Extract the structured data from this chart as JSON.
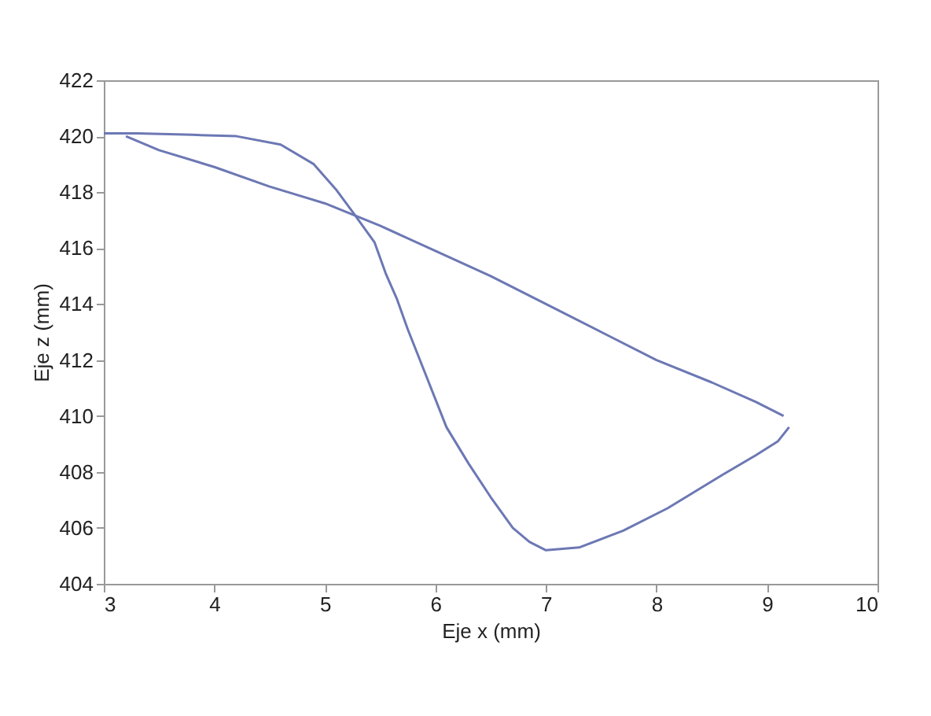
{
  "chart_data": {
    "type": "line",
    "xlabel": "Eje x (mm)",
    "ylabel": "Eje z (mm)",
    "series": [
      {
        "color": "#6c78b4",
        "x": [
          3,
          3.3,
          3.8,
          4.2,
          4.6,
          4.9,
          5.1,
          5.25,
          5.45,
          5.55,
          5.65,
          5.75,
          5.9,
          6.1,
          6.3,
          6.5,
          6.7,
          6.85,
          7,
          7.3,
          7.7,
          8.1,
          8.6,
          8.9,
          9.1,
          9.2
        ],
        "values": [
          420.1,
          420.1,
          420.05,
          420,
          419.7,
          419,
          418.1,
          417.3,
          416.2,
          415.1,
          414.2,
          413.1,
          411.6,
          409.6,
          408.3,
          407.1,
          406,
          405.5,
          405.2,
          405.3,
          405.9,
          406.7,
          407.9,
          408.6,
          409.1,
          409.6
        ]
      },
      {
        "color": "#6c78b4",
        "x": [
          3.2,
          3.5,
          4,
          4.5,
          5,
          5.5,
          6,
          6.5,
          7,
          7.5,
          8,
          8.5,
          8.9,
          9.15
        ],
        "values": [
          420,
          419.5,
          418.9,
          418.2,
          417.6,
          416.8,
          415.9,
          415,
          414,
          413,
          412,
          411.2,
          410.5,
          410
        ]
      }
    ],
    "xlim": [
      3,
      10
    ],
    "xticks": [
      3,
      4,
      5,
      6,
      7,
      8,
      9,
      10
    ],
    "ylim": [
      404,
      422
    ],
    "yticks": [
      404,
      406,
      408,
      410,
      412,
      414,
      416,
      418,
      420,
      422
    ],
    "grid": false,
    "legend": false
  }
}
